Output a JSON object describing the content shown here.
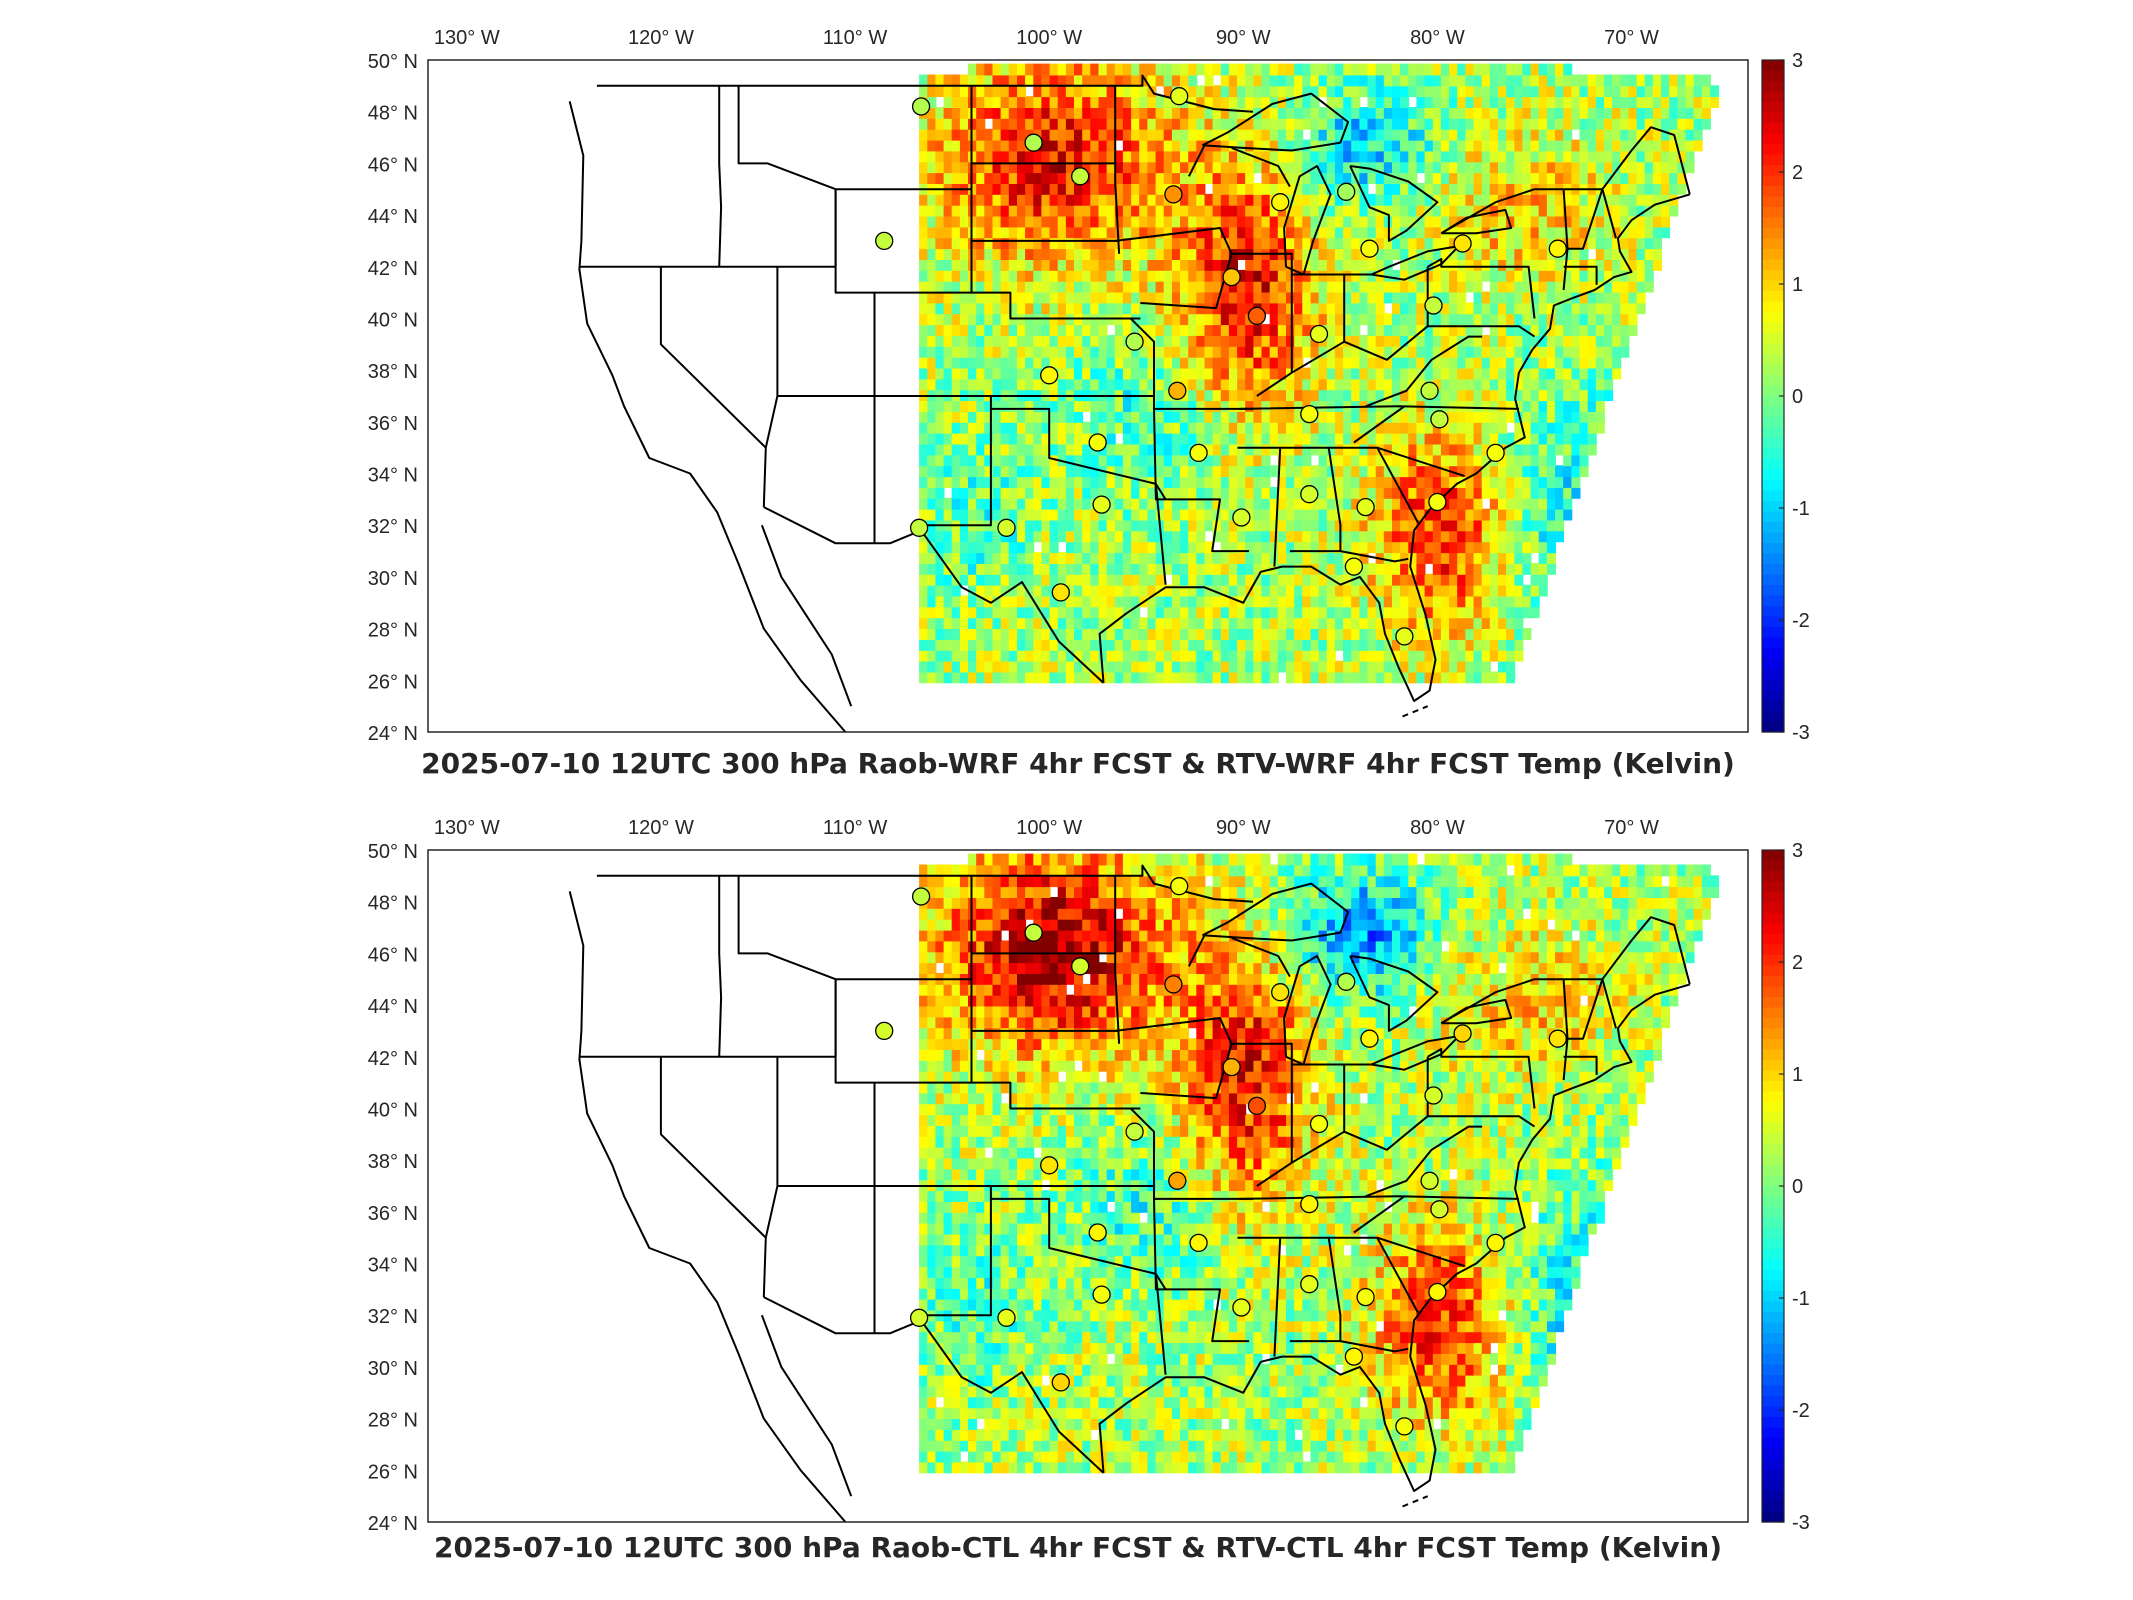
{
  "units": "Kelvin",
  "longitude_ticks": [
    "130° W",
    "120° W",
    "110° W",
    "100° W",
    "90° W",
    "80° W",
    "70° W"
  ],
  "latitude_ticks": [
    "50° N",
    "48° N",
    "46° N",
    "44° N",
    "42° N",
    "40° N",
    "38° N",
    "36° N",
    "34° N",
    "32° N",
    "30° N",
    "28° N",
    "26° N",
    "24° N"
  ],
  "colorbar": {
    "ticks": [
      "3",
      "2",
      "1",
      "0",
      "-1",
      "-2",
      "-3"
    ],
    "range": [
      -3,
      3
    ],
    "colormap": "jet"
  },
  "panels": [
    {
      "title": "2025-07-10 12UTC 300 hPa Raob-WRF 4hr FCST & RTV-WRF 4hr FCST Temp (Kelvin)"
    },
    {
      "title": "2025-07-10 12UTC 300 hPa Raob-CTL 4hr FCST & RTV-CTL 4hr FCST Temp (Kelvin)"
    }
  ],
  "stations": [
    {
      "lon": -106.6,
      "lat": 48.2,
      "v": 0.3
    },
    {
      "lon": -93.3,
      "lat": 48.6,
      "v": 0.6
    },
    {
      "lon": -100.8,
      "lat": 46.8,
      "v": 0.3
    },
    {
      "lon": -98.4,
      "lat": 45.5,
      "v": 0.4
    },
    {
      "lon": -93.6,
      "lat": 44.8,
      "v": 1.4
    },
    {
      "lon": -88.1,
      "lat": 44.5,
      "v": 0.8
    },
    {
      "lon": -84.7,
      "lat": 44.9,
      "v": 0.2
    },
    {
      "lon": -108.5,
      "lat": 43.0,
      "v": 0.4
    },
    {
      "lon": -90.6,
      "lat": 41.6,
      "v": 1.1
    },
    {
      "lon": -83.5,
      "lat": 42.7,
      "v": 0.7
    },
    {
      "lon": -78.7,
      "lat": 42.9,
      "v": 0.9
    },
    {
      "lon": -73.8,
      "lat": 42.7,
      "v": 0.8
    },
    {
      "lon": -89.3,
      "lat": 40.1,
      "v": 1.7
    },
    {
      "lon": -80.2,
      "lat": 40.5,
      "v": 0.4
    },
    {
      "lon": -86.1,
      "lat": 39.4,
      "v": 0.6
    },
    {
      "lon": -95.6,
      "lat": 39.1,
      "v": 0.3
    },
    {
      "lon": -100.0,
      "lat": 37.8,
      "v": 0.8
    },
    {
      "lon": -93.4,
      "lat": 37.2,
      "v": 1.2
    },
    {
      "lon": -80.4,
      "lat": 37.2,
      "v": 0.4
    },
    {
      "lon": -86.6,
      "lat": 36.3,
      "v": 0.7
    },
    {
      "lon": -79.9,
      "lat": 36.1,
      "v": 0.4
    },
    {
      "lon": -97.5,
      "lat": 35.2,
      "v": 0.7
    },
    {
      "lon": -92.3,
      "lat": 34.8,
      "v": 0.7
    },
    {
      "lon": -77.0,
      "lat": 34.8,
      "v": 0.7
    },
    {
      "lon": -97.3,
      "lat": 32.8,
      "v": 0.6
    },
    {
      "lon": -86.6,
      "lat": 33.2,
      "v": 0.5
    },
    {
      "lon": -83.7,
      "lat": 32.7,
      "v": 0.6
    },
    {
      "lon": -80.0,
      "lat": 32.9,
      "v": 0.7
    },
    {
      "lon": -106.7,
      "lat": 31.9,
      "v": 0.4
    },
    {
      "lon": -102.2,
      "lat": 31.9,
      "v": 0.5
    },
    {
      "lon": -90.1,
      "lat": 32.3,
      "v": 0.5
    },
    {
      "lon": -84.3,
      "lat": 30.4,
      "v": 0.7
    },
    {
      "lon": -99.4,
      "lat": 29.4,
      "v": 0.9
    },
    {
      "lon": -81.7,
      "lat": 27.7,
      "v": 0.6
    }
  ],
  "colors": {
    "outline": "#000000",
    "text": "#262626",
    "background": "#ffffff"
  }
}
